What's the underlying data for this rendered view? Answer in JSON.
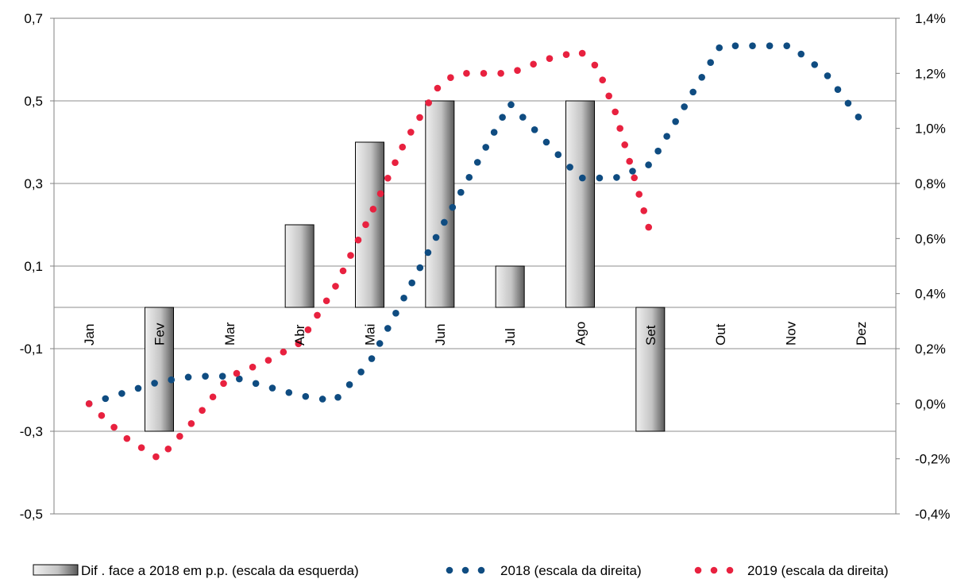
{
  "chart_data": {
    "type": "bar",
    "categories": [
      "Jan",
      "Fev",
      "Mar",
      "Abr",
      "Mai",
      "Jun",
      "Jul",
      "Ago",
      "Set",
      "Out",
      "Nov",
      "Dez"
    ],
    "left_axis": {
      "ylim": [
        -0.5,
        0.7
      ],
      "ticks": [
        "-0,5",
        "-0,3",
        "-0,1",
        "0,1",
        "0,3",
        "0,5",
        "0,7"
      ],
      "tick_values": [
        -0.5,
        -0.3,
        -0.1,
        0.1,
        0.3,
        0.5,
        0.7
      ]
    },
    "right_axis": {
      "ylim": [
        -0.4,
        1.4
      ],
      "ticks": [
        "-0,4%",
        "-0,2%",
        "0,0%",
        "0,2%",
        "0,4%",
        "0,6%",
        "0,8%",
        "1,0%",
        "1,2%",
        "1,4%"
      ],
      "tick_values": [
        -0.4,
        -0.2,
        0.0,
        0.2,
        0.4,
        0.6,
        0.8,
        1.0,
        1.2,
        1.4
      ]
    },
    "grid": true,
    "legend_position": "bottom",
    "series": [
      {
        "name": "Dif . face a 2018 em p.p. (escala da esquerda)",
        "kind": "bar",
        "axis": "left",
        "color": "#c8c8c8",
        "values": [
          null,
          -0.3,
          null,
          0.2,
          0.4,
          0.5,
          0.1,
          0.5,
          -0.3,
          null,
          null,
          null
        ]
      },
      {
        "name": "2018 (escala da direita)",
        "kind": "dotted-line",
        "axis": "right",
        "color": "#0f4c81",
        "x": [
          0,
          1,
          1.5,
          2,
          3,
          3.5,
          4,
          5,
          6,
          7,
          7.5,
          8,
          9,
          9.25,
          9.5,
          10,
          10.5,
          11
        ],
        "values": [
          0.0,
          0.08,
          0.1,
          0.1,
          0.03,
          0.01,
          0.15,
          0.63,
          1.09,
          0.82,
          0.82,
          0.87,
          1.3,
          1.3,
          1.3,
          1.3,
          1.2,
          1.03
        ]
      },
      {
        "name": "2019 (escala da direita)",
        "kind": "dotted-line",
        "axis": "right",
        "color": "#e8213f",
        "x": [
          0,
          0.5,
          1,
          1.5,
          2,
          2.5,
          3,
          3.5,
          4,
          4.5,
          5,
          5.25,
          6,
          6.5,
          7,
          7.25,
          7.5,
          8
        ],
        "values": [
          0.0,
          -0.12,
          -0.2,
          -0.06,
          0.1,
          0.15,
          0.22,
          0.42,
          0.68,
          0.95,
          1.16,
          1.2,
          1.2,
          1.25,
          1.28,
          1.22,
          1.06,
          0.62
        ]
      }
    ]
  }
}
